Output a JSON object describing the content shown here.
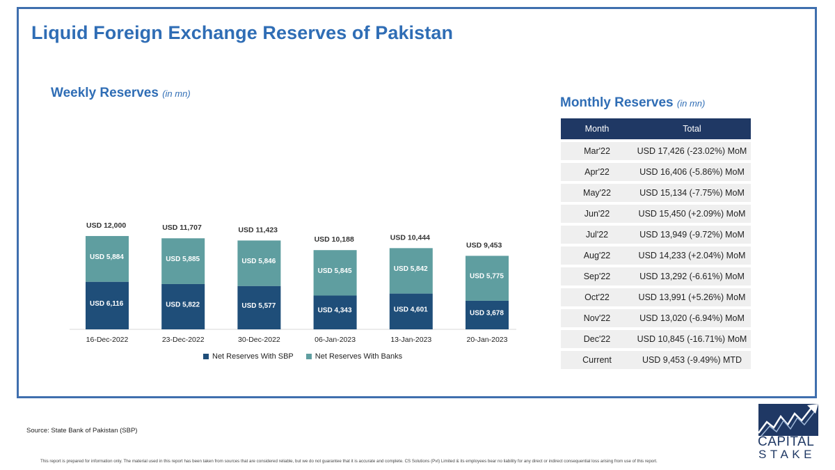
{
  "title": "Liquid Foreign Exchange Reserves of Pakistan",
  "weekly": {
    "title": "Weekly Reserves",
    "unit": "(in mn)"
  },
  "monthly": {
    "title": "Monthly Reserves",
    "unit": "(in mn)",
    "columns": [
      "Month",
      "Total"
    ],
    "rows": [
      {
        "month": "Mar'22",
        "total": "USD 17,426 (-23.02%) MoM"
      },
      {
        "month": "Apr'22",
        "total": "USD 16,406 (-5.86%) MoM"
      },
      {
        "month": "May'22",
        "total": "USD 15,134 (-7.75%) MoM"
      },
      {
        "month": "Jun'22",
        "total": "USD 15,450 (+2.09%) MoM"
      },
      {
        "month": "Jul'22",
        "total": "USD 13,949 (-9.72%) MoM"
      },
      {
        "month": "Aug'22",
        "total": "USD 14,233 (+2.04%) MoM"
      },
      {
        "month": "Sep'22",
        "total": "USD 13,292 (-6.61%) MoM"
      },
      {
        "month": "Oct'22",
        "total": "USD 13,991 (+5.26%) MoM"
      },
      {
        "month": "Nov'22",
        "total": "USD 13,020 (-6.94%) MoM"
      },
      {
        "month": "Dec'22",
        "total": "USD 10,845 (-16.71%) MoM"
      },
      {
        "month": "Current",
        "total": "USD 9,453 (-9.49%) MTD"
      }
    ]
  },
  "chart_data": {
    "type": "bar",
    "stacked": true,
    "categories": [
      "16-Dec-2022",
      "23-Dec-2022",
      "30-Dec-2022",
      "06-Jan-2023",
      "13-Jan-2023",
      "20-Jan-2023"
    ],
    "series": [
      {
        "name": "Net Reserves With SBP",
        "values": [
          6116,
          5822,
          5577,
          4343,
          4601,
          3678
        ],
        "labels": [
          "USD 6,116",
          "USD 5,822",
          "USD 5,577",
          "USD 4,343",
          "USD 4,601",
          "USD 3,678"
        ],
        "color": "#1f4e79"
      },
      {
        "name": "Net Reserves With Banks",
        "values": [
          5884,
          5885,
          5846,
          5845,
          5842,
          5775
        ],
        "labels": [
          "USD 5,884",
          "USD 5,885",
          "USD 5,846",
          "USD 5,845",
          "USD 5,842",
          "USD 5,775"
        ],
        "color": "#5f9ea0"
      }
    ],
    "totals": [
      12000,
      11707,
      11423,
      10188,
      10444,
      9453
    ],
    "total_labels": [
      "USD 12,000",
      "USD 11,707",
      "USD 11,423",
      "USD 10,188",
      "USD 10,444",
      "USD 9,453"
    ],
    "legend_position": "bottom",
    "grid": false
  },
  "source": "Source: State Bank of Pakistan (SBP)",
  "disclaimer": "This report is prepared for information only. The material used in this report has been taken from sources that are considered reliable, but we do not guarantee that it is accurate and complete. CS Solutions (Pvt) Limited & its employees bear no liability for any direct or indirect consequential loss arising from use of this report.",
  "logo": {
    "line1": "CAPITAL",
    "line2": "STAKE"
  },
  "colors": {
    "accent": "#2f6db5",
    "frame": "#3f6fae",
    "table_header": "#1f3864",
    "table_row": "#efefef"
  }
}
